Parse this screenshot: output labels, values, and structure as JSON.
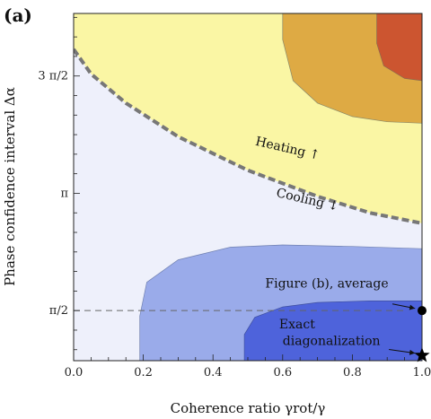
{
  "panel_label": "(a)",
  "chart_data": {
    "type": "contour",
    "xlabel": "Coherence ratio γrot/γ",
    "ylabel": "Phase confidence interval Δα",
    "xlim": [
      0.0,
      1.0
    ],
    "ylim": [
      0.9,
      5.55
    ],
    "x_ticks": [
      {
        "value": 0.0,
        "label": "0.0"
      },
      {
        "value": 0.2,
        "label": "0.2"
      },
      {
        "value": 0.4,
        "label": "0.4"
      },
      {
        "value": 0.6,
        "label": "0.6"
      },
      {
        "value": 0.8,
        "label": "0.8"
      },
      {
        "value": 1.0,
        "label": "1.0"
      }
    ],
    "y_ticks": [
      {
        "value": 1.5708,
        "label": "π/2"
      },
      {
        "value": 3.1416,
        "label": "π"
      },
      {
        "value": 4.7124,
        "label": "3 π/2"
      }
    ],
    "regions": [
      {
        "name": "heating-1",
        "color": "#faf6a4"
      },
      {
        "name": "heating-2",
        "color": "#deaa44"
      },
      {
        "name": "heating-3",
        "color": "#cc5530"
      },
      {
        "name": "cooling-background",
        "color": "#eef0fb"
      },
      {
        "name": "cooling-1",
        "color": "#9aabea"
      },
      {
        "name": "cooling-2",
        "color": "#4e63db"
      }
    ],
    "boundary": {
      "style": "dashed",
      "color": "#777777",
      "points": [
        [
          0.0,
          5.07
        ],
        [
          0.05,
          4.74
        ],
        [
          0.15,
          4.35
        ],
        [
          0.3,
          3.9
        ],
        [
          0.5,
          3.45
        ],
        [
          0.7,
          3.1
        ],
        [
          0.85,
          2.88
        ],
        [
          1.0,
          2.74
        ]
      ]
    },
    "contours": {
      "heating_2": [
        [
          0.6,
          5.55
        ],
        [
          0.6,
          5.2
        ],
        [
          0.63,
          4.65
        ],
        [
          0.7,
          4.35
        ],
        [
          0.8,
          4.17
        ],
        [
          0.9,
          4.1
        ],
        [
          1.0,
          4.08
        ]
      ],
      "heating_3": [
        [
          0.87,
          5.55
        ],
        [
          0.87,
          5.15
        ],
        [
          0.89,
          4.85
        ],
        [
          0.95,
          4.68
        ],
        [
          1.0,
          4.65
        ]
      ],
      "cooling_1": [
        [
          0.19,
          0.9
        ],
        [
          0.19,
          1.5
        ],
        [
          0.21,
          1.95
        ],
        [
          0.3,
          2.25
        ],
        [
          0.45,
          2.42
        ],
        [
          0.6,
          2.45
        ],
        [
          0.8,
          2.43
        ],
        [
          1.0,
          2.4
        ]
      ],
      "cooling_2": [
        [
          0.49,
          0.9
        ],
        [
          0.49,
          1.25
        ],
        [
          0.52,
          1.48
        ],
        [
          0.6,
          1.62
        ],
        [
          0.7,
          1.68
        ],
        [
          0.85,
          1.7
        ],
        [
          1.0,
          1.7
        ]
      ]
    },
    "reference_line": {
      "style": "dashed",
      "y": 1.5708,
      "x_from": 0.0,
      "x_to": 0.95
    },
    "markers": [
      {
        "name": "average",
        "shape": "circle",
        "x": 1.0,
        "y": 1.5708
      },
      {
        "name": "exact",
        "shape": "star",
        "x": 1.0,
        "y": 0.97
      }
    ],
    "annotations": [
      {
        "name": "heating",
        "text": "Heating ↑",
        "x": 0.52,
        "y": 3.79,
        "angle": 13
      },
      {
        "name": "cooling",
        "text": "Cooling ↓",
        "x": 0.58,
        "y": 3.1,
        "angle": 13
      },
      {
        "name": "average",
        "text": "Figure (b), average",
        "x": 0.55,
        "y": 1.88,
        "angle": 0
      },
      {
        "name": "exact-1",
        "text": "Exact",
        "x": 0.59,
        "y": 1.33,
        "angle": 0
      },
      {
        "name": "exact-2",
        "text": "diagonalization",
        "x": 0.6,
        "y": 1.11,
        "angle": 0
      }
    ],
    "arrows": [
      {
        "name": "average-arrow",
        "from": [
          0.915,
          1.66
        ],
        "to": [
          0.98,
          1.6
        ]
      },
      {
        "name": "exact-arrow",
        "from": [
          0.905,
          1.05
        ],
        "to": [
          0.98,
          1.0
        ]
      }
    ]
  }
}
